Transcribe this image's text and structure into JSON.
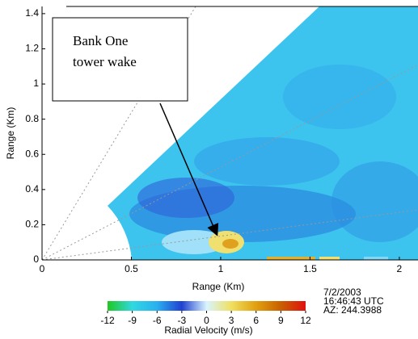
{
  "chart_data": {
    "type": "ppi",
    "xlabel": "Range (Km)",
    "ylabel": "Range (Km)",
    "xlim": [
      0,
      2.1
    ],
    "ylim": [
      0,
      1.45
    ],
    "xticks": [
      0,
      0.5,
      1,
      1.5,
      2
    ],
    "yticks": [
      0,
      0.2,
      0.4,
      0.6,
      0.8,
      1,
      1.2,
      1.4
    ],
    "colorbar": {
      "label": "Radial Velocity (m/s)",
      "clim": [
        -12,
        12
      ],
      "ticks": [
        -12,
        -9,
        -6,
        -3,
        0,
        3,
        6,
        9,
        12
      ],
      "colors": [
        "#20c820",
        "#30d8e0",
        "#2ab0f0",
        "#2040d0",
        "#d8f4ff",
        "#f0e060",
        "#e0a010",
        "#c86000",
        "#e01010"
      ]
    },
    "annotation": [
      "Bank One",
      "tower wake"
    ],
    "timestamp": [
      "7/2/2003",
      "16:46:43 UTC",
      "AZ: 244.3988"
    ]
  }
}
